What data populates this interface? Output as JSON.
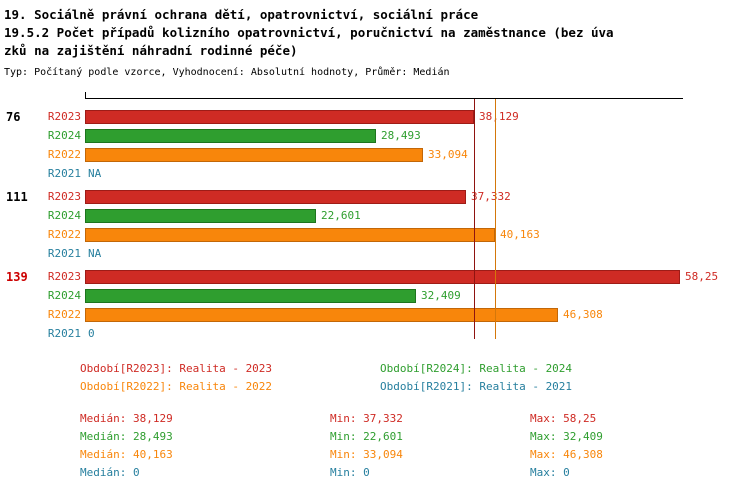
{
  "header": {
    "lines": [
      "19. Sociálně právní ochrana dětí, opatrovnictví, sociální práce",
      "19.5.2 Počet případů kolizního opatrovnictví, poručnictví na zaměstnance (bez úva",
      "zků na zajištění náhradní rodinné péče)"
    ],
    "meta": "Typ: Počítaný podle vzorce, Vyhodnocení: Absolutní hodnoty, Průměr: Medián"
  },
  "chart_data": {
    "type": "bar",
    "orientation": "horizontal",
    "x_max": 58.25,
    "axis_color": "#000000",
    "series_order": [
      "R2023",
      "R2024",
      "R2022",
      "R2021"
    ],
    "series_colors": {
      "R2023": "#cf2b24",
      "R2024": "#2f9e2f",
      "R2022": "#f8860b",
      "R2021": "#267f9e"
    },
    "series_border_colors": {
      "R2023": "#9e1c17",
      "R2024": "#1e741e",
      "R2022": "#c26708",
      "R2021": "#1b5f77"
    },
    "groups": [
      {
        "label": "76",
        "label_color": "#000000",
        "bars": [
          {
            "series": "R2023",
            "value": 38.129,
            "display": "38,129"
          },
          {
            "series": "R2024",
            "value": 28.493,
            "display": "28,493"
          },
          {
            "series": "R2022",
            "value": 33.094,
            "display": "33,094"
          },
          {
            "series": "R2021",
            "value": null,
            "display": "NA"
          }
        ]
      },
      {
        "label": "111",
        "label_color": "#000000",
        "bars": [
          {
            "series": "R2023",
            "value": 37.332,
            "display": "37,332"
          },
          {
            "series": "R2024",
            "value": 22.601,
            "display": "22,601"
          },
          {
            "series": "R2022",
            "value": 40.163,
            "display": "40,163"
          },
          {
            "series": "R2021",
            "value": null,
            "display": "NA"
          }
        ]
      },
      {
        "label": "139",
        "label_color": "#cc0000",
        "bars": [
          {
            "series": "R2023",
            "value": 58.25,
            "display": "58,25"
          },
          {
            "series": "R2024",
            "value": 32.409,
            "display": "32,409"
          },
          {
            "series": "R2022",
            "value": 46.308,
            "display": "46,308"
          },
          {
            "series": "R2021",
            "value": 0,
            "display": "0"
          }
        ]
      }
    ],
    "median_lines": [
      {
        "series": "R2023",
        "value": 38.129,
        "color": "#8f1310"
      },
      {
        "series": "R2022",
        "value": 40.163,
        "color": "#d4770a"
      }
    ]
  },
  "legend": {
    "items": [
      {
        "label": "Období[R2023]: Realita - 2023",
        "color": "#cf2b24"
      },
      {
        "label": "Období[R2024]: Realita - 2024",
        "color": "#2f9e2f"
      },
      {
        "label": "Období[R2022]: Realita - 2022",
        "color": "#f8860b"
      },
      {
        "label": "Období[R2021]: Realita - 2021",
        "color": "#267f9e"
      }
    ]
  },
  "stats": {
    "rows": [
      {
        "color": "#cf2b24",
        "median": "Medián: 38,129",
        "min": "Min: 37,332",
        "max": "Max: 58,25"
      },
      {
        "color": "#2f9e2f",
        "median": "Medián: 28,493",
        "min": "Min: 22,601",
        "max": "Max: 32,409"
      },
      {
        "color": "#f8860b",
        "median": "Medián: 40,163",
        "min": "Min: 33,094",
        "max": "Max: 46,308"
      },
      {
        "color": "#267f9e",
        "median": "Medián: 0",
        "min": "Min: 0",
        "max": "Max: 0"
      }
    ]
  }
}
